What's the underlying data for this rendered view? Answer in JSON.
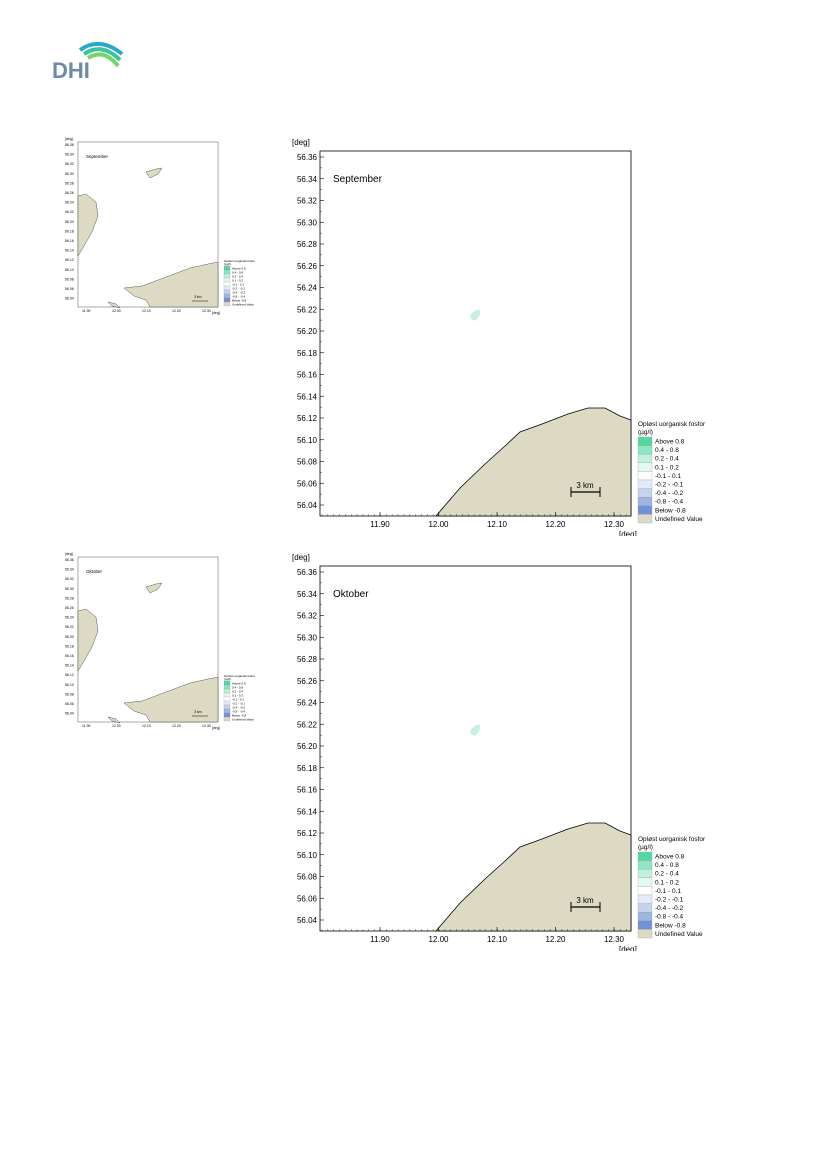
{
  "logo": {
    "text": "DHI"
  },
  "panels": [
    {
      "month": "September",
      "unit_y": "[deg]",
      "unit_x": "[deg]",
      "y_ticks": [
        "56.36",
        "56.34",
        "56.32",
        "56.30",
        "56.28",
        "56.26",
        "56.24",
        "56.22",
        "56.20",
        "56.18",
        "56.16",
        "56.14",
        "56.12",
        "56.10",
        "56.08",
        "56.06",
        "56.04"
      ],
      "x_ticks": [
        "11.90",
        "12.00",
        "12.10",
        "12.20",
        "12.30"
      ],
      "scale_bar": "3 km",
      "legend": {
        "title_line1": "Opløst uorganisk fosfor",
        "title_line2": "(µg/l)",
        "items": [
          {
            "label": "Above  0.8",
            "color": "#52d9a1"
          },
          {
            "label": "0.4 -  0.8",
            "color": "#8ee6c1"
          },
          {
            "label": "0.2 -  0.4",
            "color": "#bff1dc"
          },
          {
            "label": "0.1 -  0.2",
            "color": "#e4f9ef"
          },
          {
            "label": "-0.1 -  0.1",
            "color": "#ffffff"
          },
          {
            "label": "-0.2 - -0.1",
            "color": "#e4eaf7"
          },
          {
            "label": "-0.4 - -0.2",
            "color": "#c5d3ee"
          },
          {
            "label": "-0.8 - -0.4",
            "color": "#9db5e3"
          },
          {
            "label": "Below -0.8",
            "color": "#6f93d6"
          },
          {
            "label": "Undefined Value",
            "color": "#dddac4"
          }
        ]
      }
    },
    {
      "month": "Oktober",
      "unit_y": "[deg]",
      "unit_x": "[deg]",
      "y_ticks": [
        "56.36",
        "56.34",
        "56.32",
        "56.30",
        "56.28",
        "56.26",
        "56.24",
        "56.22",
        "56.20",
        "56.18",
        "56.16",
        "56.14",
        "56.12",
        "56.10",
        "56.08",
        "56.06",
        "56.04"
      ],
      "x_ticks": [
        "11.90",
        "12.00",
        "12.10",
        "12.20",
        "12.30"
      ],
      "scale_bar": "3 km",
      "legend": {
        "title_line1": "Opløst uorganisk fosfor",
        "title_line2": "(µg/l)",
        "items": [
          {
            "label": "Above  0.8",
            "color": "#52d9a1"
          },
          {
            "label": "0.4 -  0.8",
            "color": "#8ee6c1"
          },
          {
            "label": "0.2 -  0.4",
            "color": "#bff1dc"
          },
          {
            "label": "0.1 -  0.2",
            "color": "#e4f9ef"
          },
          {
            "label": "-0.1 -  0.1",
            "color": "#ffffff"
          },
          {
            "label": "-0.2 - -0.1",
            "color": "#e4eaf7"
          },
          {
            "label": "-0.4 - -0.2",
            "color": "#c5d3ee"
          },
          {
            "label": "-0.8 - -0.4",
            "color": "#9db5e3"
          },
          {
            "label": "Below -0.8",
            "color": "#6f93d6"
          },
          {
            "label": "Undefined Value",
            "color": "#dddac4"
          }
        ]
      }
    }
  ],
  "colors": {
    "land": "#dddac4",
    "plume": "#bff1dc",
    "dhi_blue": "#3a6aa8",
    "dhi_green": "#6fcf97"
  }
}
